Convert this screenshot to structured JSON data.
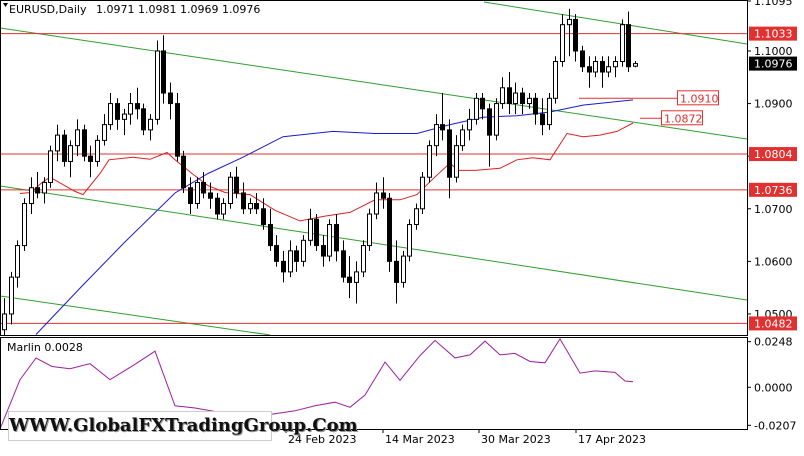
{
  "header": {
    "symbol": "EURUSD,Daily",
    "ohlc": "1.0971 1.0981 1.0969 1.0976"
  },
  "indicator": {
    "label": "Marlin 0.0028"
  },
  "watermark": "WWW.GlobalFXTradingGroup.Com",
  "colors": {
    "level_line": "#e03030",
    "channel_line": "#2e9e2e",
    "ma_red": "#dd2020",
    "ma_blue": "#1a1ad0",
    "oscillator": "#9b1fa0",
    "current_price_bg": "#000000"
  },
  "chart_data": [
    {
      "type": "candlestick",
      "title": "EURUSD,Daily",
      "x_ticks": [
        "24 Feb 2023",
        "14 Mar 2023",
        "30 Mar 2023",
        "17 Apr 2023"
      ],
      "y_ticks": [
        1.05,
        1.06,
        1.07,
        1.08,
        1.09,
        1.1,
        1.1095
      ],
      "ylim": [
        1.046,
        1.1095
      ],
      "grid": false,
      "current_price": 1.0976,
      "horizontal_levels": [
        1.1033,
        1.0804,
        1.0736,
        1.0482
      ],
      "level_labels": [
        "1.1033",
        "1.0804",
        "1.0736",
        "1.0482"
      ],
      "target_labels": [
        {
          "text": "1.0910",
          "price": 1.091
        },
        {
          "text": "1.0872",
          "price": 1.0872
        }
      ],
      "candles": [
        [
          1.047,
          1.053,
          1.044,
          1.05
        ],
        [
          1.05,
          1.058,
          1.048,
          1.057
        ],
        [
          1.057,
          1.064,
          1.055,
          1.063
        ],
        [
          1.063,
          1.072,
          1.062,
          1.071
        ],
        [
          1.071,
          1.076,
          1.069,
          1.074
        ],
        [
          1.074,
          1.077,
          1.072,
          1.073
        ],
        [
          1.073,
          1.076,
          1.071,
          1.075
        ],
        [
          1.075,
          1.082,
          1.074,
          1.081
        ],
        [
          1.081,
          1.086,
          1.079,
          1.084
        ],
        [
          1.084,
          1.085,
          1.078,
          1.079
        ],
        [
          1.079,
          1.083,
          1.076,
          1.082
        ],
        [
          1.082,
          1.087,
          1.08,
          1.085
        ],
        [
          1.085,
          1.086,
          1.079,
          1.08
        ],
        [
          1.08,
          1.082,
          1.076,
          1.079
        ],
        [
          1.079,
          1.084,
          1.078,
          1.083
        ],
        [
          1.083,
          1.088,
          1.082,
          1.086
        ],
        [
          1.086,
          1.092,
          1.085,
          1.09
        ],
        [
          1.09,
          1.091,
          1.085,
          1.087
        ],
        [
          1.087,
          1.089,
          1.084,
          1.088
        ],
        [
          1.088,
          1.092,
          1.086,
          1.09
        ],
        [
          1.09,
          1.093,
          1.087,
          1.089
        ],
        [
          1.089,
          1.09,
          1.084,
          1.085
        ],
        [
          1.085,
          1.088,
          1.083,
          1.087
        ],
        [
          1.087,
          1.102,
          1.086,
          1.1
        ],
        [
          1.1,
          1.103,
          1.09,
          1.092
        ],
        [
          1.092,
          1.094,
          1.087,
          1.09
        ],
        [
          1.09,
          1.092,
          1.079,
          1.08
        ],
        [
          1.08,
          1.081,
          1.073,
          1.074
        ],
        [
          1.074,
          1.076,
          1.069,
          1.071
        ],
        [
          1.071,
          1.076,
          1.07,
          1.075
        ],
        [
          1.075,
          1.077,
          1.072,
          1.073
        ],
        [
          1.073,
          1.075,
          1.07,
          1.072
        ],
        [
          1.072,
          1.073,
          1.068,
          1.069
        ],
        [
          1.069,
          1.072,
          1.068,
          1.071
        ],
        [
          1.071,
          1.077,
          1.07,
          1.076
        ],
        [
          1.076,
          1.078,
          1.072,
          1.073
        ],
        [
          1.073,
          1.075,
          1.069,
          1.07
        ],
        [
          1.07,
          1.072,
          1.069,
          1.071
        ],
        [
          1.071,
          1.073,
          1.069,
          1.07
        ],
        [
          1.07,
          1.072,
          1.066,
          1.067
        ],
        [
          1.067,
          1.07,
          1.062,
          1.063
        ],
        [
          1.063,
          1.065,
          1.059,
          1.06
        ],
        [
          1.06,
          1.062,
          1.056,
          1.058
        ],
        [
          1.058,
          1.064,
          1.057,
          1.062
        ],
        [
          1.062,
          1.063,
          1.058,
          1.06
        ],
        [
          1.06,
          1.065,
          1.059,
          1.064
        ],
        [
          1.064,
          1.07,
          1.063,
          1.068
        ],
        [
          1.068,
          1.069,
          1.062,
          1.063
        ],
        [
          1.063,
          1.065,
          1.059,
          1.061
        ],
        [
          1.061,
          1.068,
          1.06,
          1.067
        ],
        [
          1.067,
          1.069,
          1.06,
          1.062
        ],
        [
          1.062,
          1.064,
          1.056,
          1.057
        ],
        [
          1.057,
          1.061,
          1.053,
          1.056
        ],
        [
          1.056,
          1.06,
          1.052,
          1.058
        ],
        [
          1.058,
          1.064,
          1.057,
          1.063
        ],
        [
          1.063,
          1.07,
          1.062,
          1.069
        ],
        [
          1.069,
          1.075,
          1.068,
          1.073
        ],
        [
          1.073,
          1.076,
          1.07,
          1.072
        ],
        [
          1.072,
          1.073,
          1.058,
          1.06
        ],
        [
          1.06,
          1.064,
          1.052,
          1.056
        ],
        [
          1.056,
          1.062,
          1.055,
          1.061
        ],
        [
          1.061,
          1.068,
          1.06,
          1.067
        ],
        [
          1.067,
          1.071,
          1.066,
          1.07
        ],
        [
          1.07,
          1.077,
          1.069,
          1.076
        ],
        [
          1.076,
          1.083,
          1.075,
          1.082
        ],
        [
          1.082,
          1.088,
          1.08,
          1.086
        ],
        [
          1.086,
          1.092,
          1.083,
          1.085
        ],
        [
          1.085,
          1.087,
          1.072,
          1.076
        ],
        [
          1.076,
          1.084,
          1.075,
          1.082
        ],
        [
          1.082,
          1.086,
          1.081,
          1.085
        ],
        [
          1.085,
          1.089,
          1.083,
          1.087
        ],
        [
          1.087,
          1.092,
          1.086,
          1.091
        ],
        [
          1.091,
          1.092,
          1.087,
          1.089
        ],
        [
          1.089,
          1.09,
          1.078,
          1.084
        ],
        [
          1.084,
          1.091,
          1.083,
          1.09
        ],
        [
          1.09,
          1.095,
          1.089,
          1.093
        ],
        [
          1.093,
          1.096,
          1.088,
          1.09
        ],
        [
          1.09,
          1.094,
          1.088,
          1.092
        ],
        [
          1.092,
          1.093,
          1.088,
          1.09
        ],
        [
          1.09,
          1.092,
          1.089,
          1.091
        ],
        [
          1.091,
          1.092,
          1.086,
          1.088
        ],
        [
          1.088,
          1.091,
          1.084,
          1.086
        ],
        [
          1.086,
          1.092,
          1.085,
          1.091
        ],
        [
          1.091,
          1.099,
          1.09,
          1.098
        ],
        [
          1.098,
          1.107,
          1.097,
          1.105
        ],
        [
          1.105,
          1.108,
          1.099,
          1.106
        ],
        [
          1.106,
          1.107,
          1.098,
          1.1
        ],
        [
          1.1,
          1.101,
          1.096,
          1.097
        ],
        [
          1.097,
          1.099,
          1.093,
          1.096
        ],
        [
          1.096,
          1.099,
          1.095,
          1.098
        ],
        [
          1.098,
          1.099,
          1.093,
          1.096
        ],
        [
          1.096,
          1.099,
          1.095,
          1.097
        ],
        [
          1.097,
          1.099,
          1.095,
          1.098
        ],
        [
          1.098,
          1.106,
          1.097,
          1.105
        ],
        [
          1.105,
          1.1075,
          1.096,
          1.097
        ],
        [
          1.0971,
          1.0981,
          1.0969,
          1.0976
        ]
      ],
      "series": [
        {
          "name": "",
          "type": "line",
          "color": "ma_red",
          "values": [
            [
              20,
              1.0729
            ],
            [
              31,
              1.0731
            ],
            [
              42,
              1.075
            ],
            [
              50,
              1.076
            ],
            [
              75,
              1.0733
            ],
            [
              83,
              1.0727
            ],
            [
              100,
              1.0767
            ],
            [
              109,
              1.0793
            ],
            [
              133,
              1.0798
            ],
            [
              150,
              1.0794
            ],
            [
              167,
              1.0807
            ],
            [
              175,
              1.0793
            ],
            [
              192,
              1.0767
            ],
            [
              208,
              1.0744
            ],
            [
              225,
              1.0731
            ],
            [
              250,
              1.0727
            ],
            [
              275,
              1.0697
            ],
            [
              300,
              1.0677
            ],
            [
              325,
              1.0686
            ],
            [
              350,
              1.0693
            ],
            [
              375,
              1.0717
            ],
            [
              400,
              1.0717
            ],
            [
              417,
              1.0727
            ],
            [
              433,
              1.0757
            ],
            [
              450,
              1.0787
            ],
            [
              458,
              1.0773
            ],
            [
              475,
              1.0773
            ],
            [
              500,
              1.0777
            ],
            [
              517,
              1.0793
            ],
            [
              533,
              1.0797
            ],
            [
              550,
              1.0793
            ],
            [
              567,
              1.0843
            ],
            [
              583,
              1.0837
            ],
            [
              600,
              1.084
            ],
            [
              617,
              1.0847
            ],
            [
              633,
              1.0863
            ]
          ]
        },
        {
          "name": "",
          "type": "line",
          "color": "ma_blue",
          "values": [
            [
              36,
              1.0461
            ],
            [
              83,
              1.0555
            ],
            [
              125,
              1.0637
            ],
            [
              175,
              1.073
            ],
            [
              208,
              1.0767
            ],
            [
              242,
              1.0797
            ],
            [
              283,
              1.0837
            ],
            [
              333,
              1.0847
            ],
            [
              375,
              1.0843
            ],
            [
              417,
              1.0843
            ],
            [
              450,
              1.086
            ],
            [
              483,
              1.0874
            ],
            [
              517,
              1.0877
            ],
            [
              550,
              1.0884
            ],
            [
              583,
              1.0897
            ],
            [
              633,
              1.0907
            ]
          ]
        }
      ]
    },
    {
      "type": "line",
      "title": "Marlin 0.0028",
      "y_ticks": [
        0.0248,
        0.0,
        -0.0207
      ],
      "ylim": [
        -0.0227,
        0.0268
      ],
      "series": [
        {
          "name": "",
          "values": [
            [
              0,
              -0.0227
            ],
            [
              20,
              0.0041
            ],
            [
              36,
              0.0159
            ],
            [
              52,
              0.0113
            ],
            [
              70,
              0.0101
            ],
            [
              90,
              0.0128
            ],
            [
              110,
              0.0041
            ],
            [
              135,
              0.0125
            ],
            [
              155,
              0.0196
            ],
            [
              175,
              -0.0101
            ],
            [
              195,
              -0.0113
            ],
            [
              215,
              -0.0132
            ],
            [
              235,
              -0.0144
            ],
            [
              255,
              -0.016
            ],
            [
              275,
              -0.0144
            ],
            [
              295,
              -0.0128
            ],
            [
              315,
              -0.0101
            ],
            [
              335,
              -0.0081
            ],
            [
              350,
              -0.0109
            ],
            [
              365,
              -0.0042
            ],
            [
              385,
              0.0137
            ],
            [
              400,
              0.0038
            ],
            [
              420,
              0.0172
            ],
            [
              435,
              0.0255
            ],
            [
              455,
              0.016
            ],
            [
              470,
              0.0176
            ],
            [
              485,
              0.0251
            ],
            [
              500,
              0.0176
            ],
            [
              515,
              0.0184
            ],
            [
              530,
              0.014
            ],
            [
              545,
              0.0133
            ],
            [
              560,
              0.0263
            ],
            [
              580,
              0.0077
            ],
            [
              595,
              0.0089
            ],
            [
              615,
              0.0081
            ],
            [
              625,
              0.0034
            ],
            [
              633,
              0.003
            ]
          ]
        }
      ]
    }
  ]
}
